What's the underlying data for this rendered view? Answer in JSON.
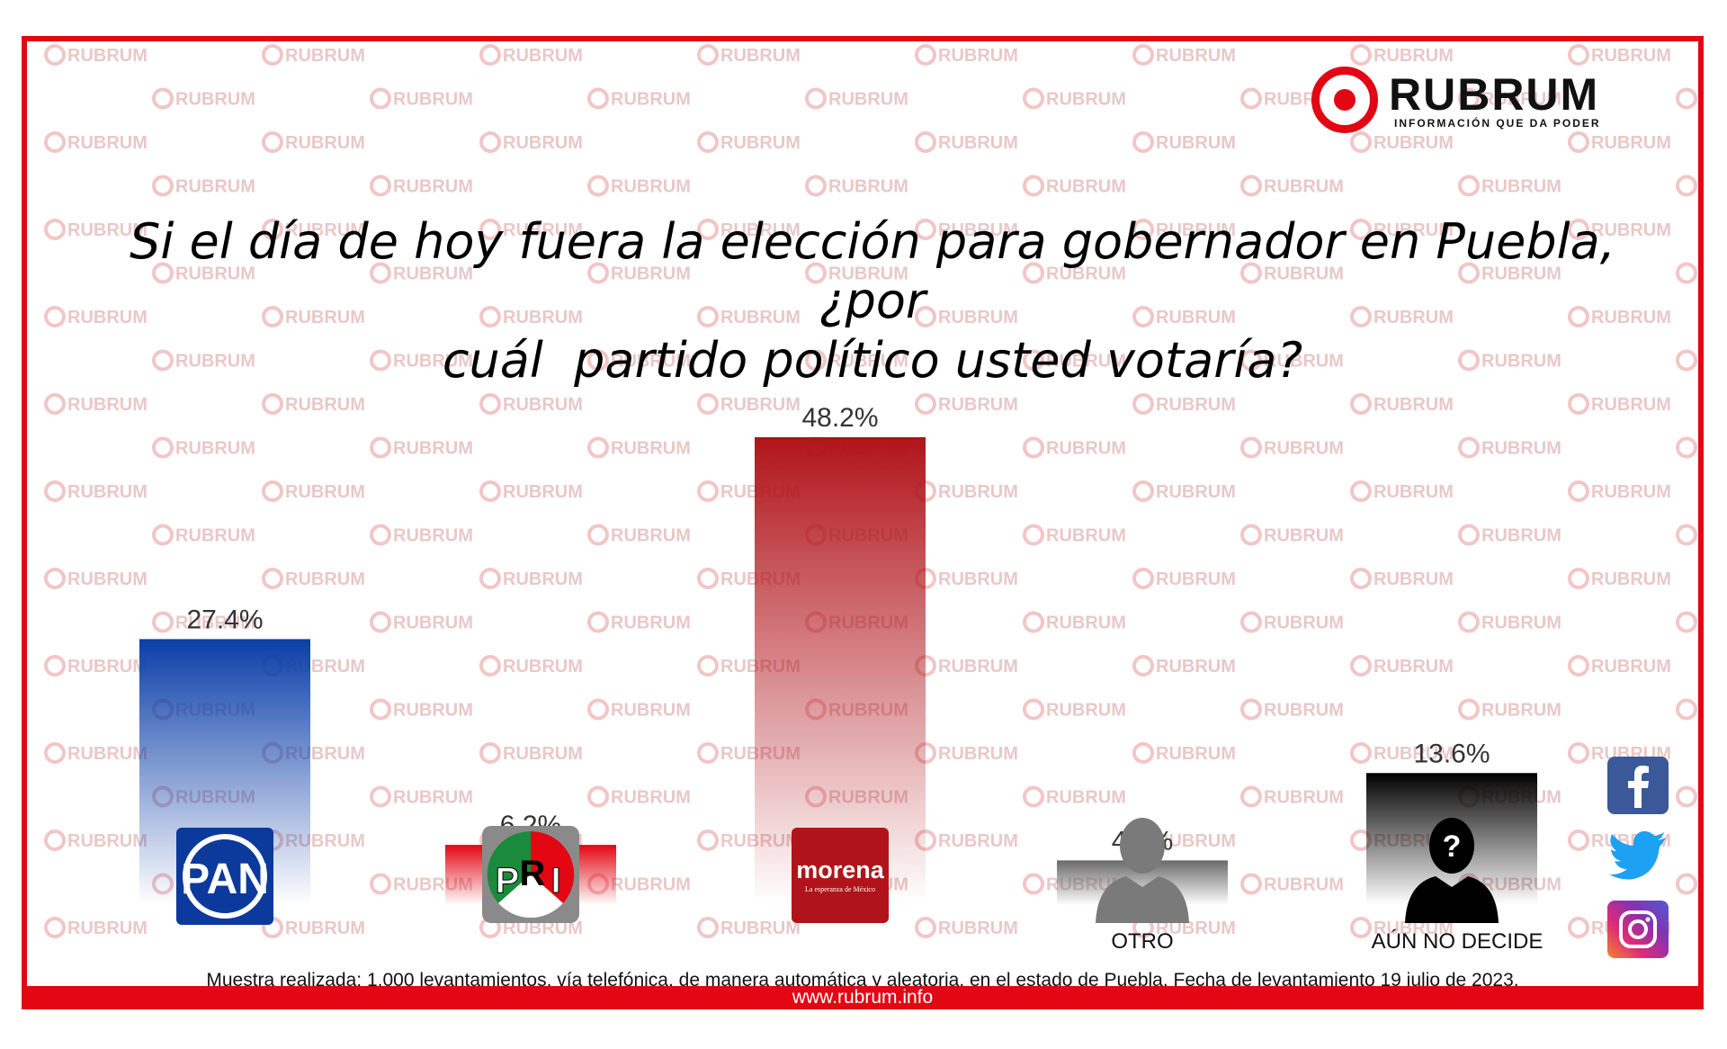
{
  "watermark_text": "RUBRUM",
  "brand": {
    "name": "RUBRUM",
    "tagline": "INFORMACIÓN QUE DA PODER",
    "accent_color": "#e30613"
  },
  "question_line1": "Si el día de hoy fuera la elección para gobernador en Puebla, ¿por",
  "question_line2": "cuál  partido político usted votaría?",
  "chart_data": {
    "type": "bar",
    "title": "Si el día de hoy fuera la elección para gobernador en Puebla, ¿por cuál  partido político usted votaría?",
    "categories": [
      "PAN",
      "PRI",
      "morena",
      "OTRO",
      "AÚN NO DECIDE"
    ],
    "values": [
      27.4,
      6.2,
      48.2,
      4.6,
      13.6
    ],
    "value_labels": [
      "27.4%",
      "6.2%",
      "48.2%",
      "4.6%",
      "13.6%"
    ],
    "colors": [
      "#0a3ea8",
      "#e30613",
      "#b0141a",
      "#777777",
      "#000000"
    ],
    "ylim": [
      0,
      50
    ],
    "xlabel": "",
    "ylabel": "",
    "grid": false,
    "legend": "none"
  },
  "logos": {
    "pan": "PAN",
    "pri_p": "P",
    "pri_r": "R",
    "pri_i": "I",
    "morena": "morena",
    "morena_sub": "La esperanza de México",
    "otro_label": "OTRO",
    "aun_label": "AÚN NO DECIDE",
    "question_mark": "?"
  },
  "social_icons": [
    "facebook-icon",
    "twitter-icon",
    "instagram-icon"
  ],
  "footnote": "Muestra realizada: 1,000 levantamientos, vía telefónica, de manera automática y aleatoria, en el estado de Puebla. Fecha de levantamiento 19 julio de 2023.",
  "website": "www.rubrum.info"
}
